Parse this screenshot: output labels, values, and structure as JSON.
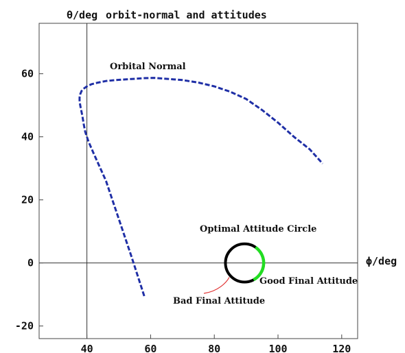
{
  "chart_data": {
    "type": "line",
    "title_prefix": "θ/deg",
    "title": "orbit-normal and attitudes",
    "xlabel": "ϕ/deg",
    "ylabel": "θ/deg",
    "xlim": [
      25,
      125
    ],
    "ylim": [
      -24,
      76
    ],
    "origin": {
      "x": 40,
      "y": 0
    },
    "x_ticks": [
      40,
      60,
      80,
      100,
      120
    ],
    "y_ticks": [
      -20,
      0,
      20,
      40,
      60
    ],
    "grid": false,
    "series": [
      {
        "color": "#1f2fa6",
        "style": "dashed",
        "x": [
          58,
          54,
          50,
          46,
          42,
          40.5,
          39.5,
          39,
          38.6,
          38.2,
          37.9,
          37.7,
          37.7,
          37.9,
          38.3,
          38.9,
          40,
          41.5,
          43.5,
          46,
          49,
          52,
          55,
          58,
          61,
          65,
          70,
          75,
          80,
          85,
          90,
          95,
          100,
          105,
          110,
          114
        ],
        "y": [
          -10.5,
          2,
          14,
          26,
          35,
          38.5,
          41.5,
          44,
          46.5,
          48.5,
          50,
          51.5,
          52.5,
          53.5,
          54.5,
          55.2,
          56,
          56.7,
          57.2,
          57.7,
          58,
          58.2,
          58.4,
          58.6,
          58.7,
          58.4,
          58,
          57.2,
          56,
          54.3,
          52,
          48.5,
          44.5,
          40,
          36,
          31.5
        ]
      }
    ],
    "circle": {
      "center_x": 89.5,
      "center_y": 0,
      "radius": 6
    },
    "good_arc_color": "#22dd22",
    "pointer_color": "#e03030",
    "annotations": {
      "orbital_normal": "Orbital Normal",
      "optimal_circle": "Optimal Attitude Circle",
      "good_final": "Good Final Attitude",
      "bad_final": "Bad Final Attitude"
    }
  }
}
